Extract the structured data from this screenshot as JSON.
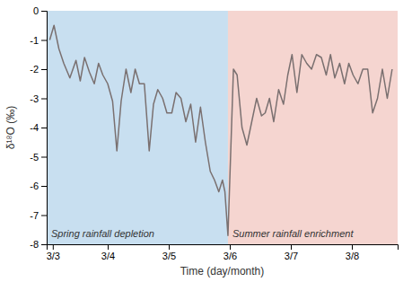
{
  "chart_data": {
    "type": "line",
    "xlabel": "Time (day/month)",
    "ylabel": "δ¹⁸O (‰)",
    "x": [
      3.05,
      3.12,
      3.2,
      3.28,
      3.38,
      3.48,
      3.55,
      3.62,
      3.7,
      3.78,
      3.85,
      3.92,
      4.0,
      4.08,
      4.15,
      4.22,
      4.3,
      4.38,
      4.45,
      4.52,
      4.6,
      4.68,
      4.75,
      4.82,
      4.9,
      4.97,
      5.05,
      5.12,
      5.2,
      5.28,
      5.36,
      5.44,
      5.52,
      5.6,
      5.68,
      5.75,
      5.82,
      5.88,
      5.92,
      5.97,
      6.0,
      6.06,
      6.12,
      6.2,
      6.28,
      6.36,
      6.44,
      6.52,
      6.58,
      6.65,
      6.72,
      6.8,
      6.88,
      6.95,
      7.02,
      7.1,
      7.18,
      7.26,
      7.34,
      7.42,
      7.5,
      7.58,
      7.65,
      7.72,
      7.8,
      7.88,
      7.95,
      8.02,
      8.1,
      8.18,
      8.26,
      8.34,
      8.42,
      8.5,
      8.58,
      8.66
    ],
    "values": [
      -1.0,
      -0.5,
      -1.3,
      -1.8,
      -2.3,
      -1.7,
      -2.4,
      -1.6,
      -2.1,
      -2.5,
      -1.8,
      -2.2,
      -2.5,
      -3.1,
      -4.8,
      -3.1,
      -2.0,
      -2.8,
      -2.0,
      -2.5,
      -2.5,
      -4.8,
      -3.2,
      -2.7,
      -3.0,
      -3.5,
      -3.5,
      -2.8,
      -3.0,
      -3.8,
      -3.2,
      -4.5,
      -3.3,
      -4.5,
      -5.5,
      -5.8,
      -6.2,
      -5.8,
      -6.2,
      -7.7,
      -5.8,
      -2.0,
      -2.2,
      -4.0,
      -4.6,
      -3.8,
      -3.0,
      -3.6,
      -3.5,
      -3.0,
      -3.8,
      -2.7,
      -3.2,
      -2.2,
      -1.5,
      -2.8,
      -1.5,
      -1.8,
      -2.0,
      -1.5,
      -1.6,
      -2.2,
      -1.5,
      -2.3,
      -1.8,
      -2.5,
      -1.8,
      -2.2,
      -2.5,
      -2.0,
      -2.0,
      -3.5,
      -3.0,
      -2.0,
      -3.0,
      -2.0
    ],
    "color": "#7a7070",
    "xlim": [
      3.0,
      8.75
    ],
    "xticks": [
      {
        "value": 3.1,
        "label": "3/3"
      },
      {
        "value": 4.0,
        "label": "3/4"
      },
      {
        "value": 5.0,
        "label": "3/5"
      },
      {
        "value": 6.0,
        "label": "3/6"
      },
      {
        "value": 7.0,
        "label": "3/7"
      },
      {
        "value": 8.0,
        "label": "3/8"
      }
    ],
    "ylim": [
      -8,
      0
    ],
    "yticks": [
      0,
      -1,
      -2,
      -3,
      -4,
      -5,
      -6,
      -7,
      -8
    ],
    "grid": false,
    "regions": [
      {
        "label": "Spring rainfall depletion",
        "xmin": 3.0,
        "xmax": 5.97,
        "color": "#c8dff0"
      },
      {
        "label": "Summer rainfall enrichment",
        "xmin": 5.97,
        "xmax": 8.75,
        "color": "#f5d5d0"
      }
    ]
  }
}
